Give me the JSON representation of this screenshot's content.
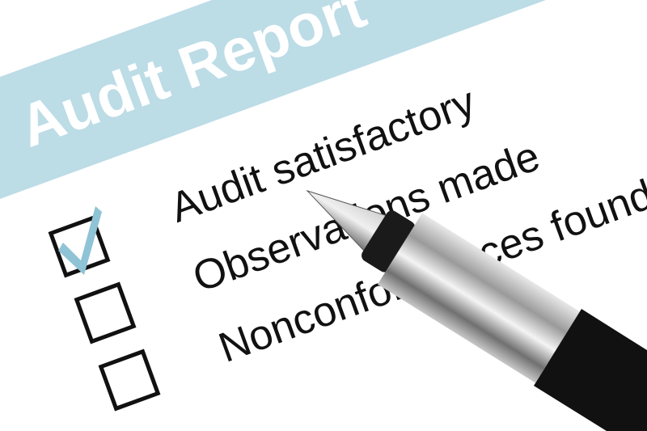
{
  "title": "Audit Report",
  "checklist": [
    {
      "label": "Audit satisfactory",
      "checked": true
    },
    {
      "label": "Observations made",
      "checked": false
    },
    {
      "label": "Nonconformances found",
      "checked": false
    }
  ],
  "colors": {
    "banner": "#bcdce6",
    "check": "#8fc3d6",
    "text": "#111111"
  }
}
